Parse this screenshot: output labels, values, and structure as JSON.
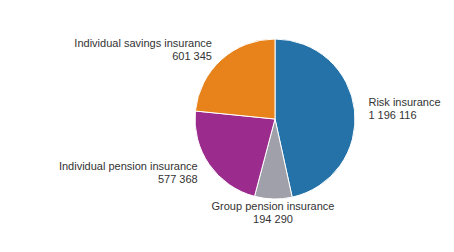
{
  "chart_data": {
    "type": "pie",
    "categories": [
      "Risk insurance",
      "Group pension insurance",
      "Individual pension insurance",
      "Individual savings insurance"
    ],
    "values": [
      1196116,
      194290,
      577368,
      601345
    ],
    "value_labels": [
      "1 196 116",
      "194 290",
      "577 368",
      "601 345"
    ],
    "colors": [
      "#2472a8",
      "#a0a0aa",
      "#9b2c8e",
      "#e8821a"
    ],
    "data_labels": true
  }
}
